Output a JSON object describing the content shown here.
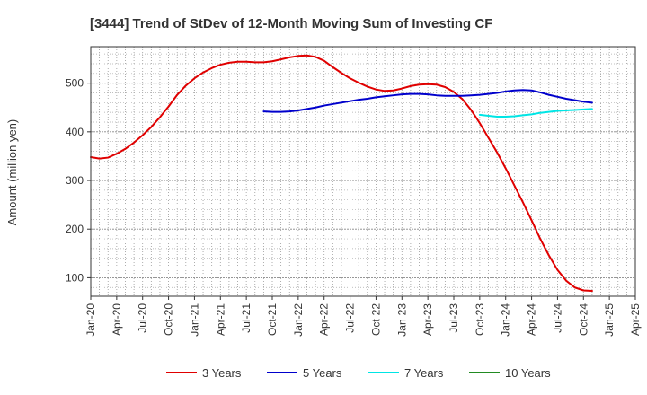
{
  "chart_data": {
    "type": "line",
    "title": "[3444]  Trend of StDev of 12-Month Moving Sum of Investing CF",
    "ylabel": "Amount (million yen)",
    "xlabel": "",
    "ylim": [
      62,
      575
    ],
    "xlim": [
      "2020-01",
      "2025-04"
    ],
    "y_ticks": [
      100,
      200,
      300,
      400,
      500
    ],
    "x_tick_labels": [
      "Jan-20",
      "Apr-20",
      "Jul-20",
      "Oct-20",
      "Jan-21",
      "Apr-21",
      "Jul-21",
      "Oct-21",
      "Jan-22",
      "Apr-22",
      "Jul-22",
      "Oct-22",
      "Jan-23",
      "Apr-23",
      "Jul-23",
      "Oct-23",
      "Jan-24",
      "Apr-24",
      "Jul-24",
      "Oct-24",
      "Jan-25",
      "Apr-25"
    ],
    "grid": true,
    "legend_position": "bottom",
    "series": [
      {
        "name": "3 Years",
        "color": "#e00000",
        "points": [
          [
            "2020-01",
            348
          ],
          [
            "2020-02",
            345
          ],
          [
            "2020-03",
            347
          ],
          [
            "2020-04",
            355
          ],
          [
            "2020-05",
            365
          ],
          [
            "2020-06",
            378
          ],
          [
            "2020-07",
            393
          ],
          [
            "2020-08",
            410
          ],
          [
            "2020-09",
            430
          ],
          [
            "2020-10",
            452
          ],
          [
            "2020-11",
            476
          ],
          [
            "2020-12",
            495
          ],
          [
            "2021-01",
            510
          ],
          [
            "2021-02",
            522
          ],
          [
            "2021-03",
            531
          ],
          [
            "2021-04",
            538
          ],
          [
            "2021-05",
            542
          ],
          [
            "2021-06",
            544
          ],
          [
            "2021-07",
            544
          ],
          [
            "2021-08",
            543
          ],
          [
            "2021-09",
            543
          ],
          [
            "2021-10",
            545
          ],
          [
            "2021-11",
            549
          ],
          [
            "2021-12",
            553
          ],
          [
            "2022-01",
            556
          ],
          [
            "2022-02",
            557
          ],
          [
            "2022-03",
            554
          ],
          [
            "2022-04",
            546
          ],
          [
            "2022-05",
            533
          ],
          [
            "2022-06",
            521
          ],
          [
            "2022-07",
            510
          ],
          [
            "2022-08",
            501
          ],
          [
            "2022-09",
            493
          ],
          [
            "2022-10",
            487
          ],
          [
            "2022-11",
            484
          ],
          [
            "2022-12",
            485
          ],
          [
            "2023-01",
            489
          ],
          [
            "2023-02",
            494
          ],
          [
            "2023-03",
            497
          ],
          [
            "2023-04",
            498
          ],
          [
            "2023-05",
            497
          ],
          [
            "2023-06",
            492
          ],
          [
            "2023-07",
            482
          ],
          [
            "2023-08",
            467
          ],
          [
            "2023-09",
            445
          ],
          [
            "2023-10",
            418
          ],
          [
            "2023-11",
            388
          ],
          [
            "2023-12",
            358
          ],
          [
            "2024-01",
            325
          ],
          [
            "2024-02",
            290
          ],
          [
            "2024-03",
            255
          ],
          [
            "2024-04",
            218
          ],
          [
            "2024-05",
            180
          ],
          [
            "2024-06",
            146
          ],
          [
            "2024-07",
            116
          ],
          [
            "2024-08",
            94
          ],
          [
            "2024-09",
            80
          ],
          [
            "2024-10",
            74
          ],
          [
            "2024-11",
            73
          ]
        ]
      },
      {
        "name": "5 Years",
        "color": "#0000cc",
        "points": [
          [
            "2021-09",
            442
          ],
          [
            "2021-10",
            441
          ],
          [
            "2021-11",
            441
          ],
          [
            "2021-12",
            442
          ],
          [
            "2022-01",
            444
          ],
          [
            "2022-02",
            447
          ],
          [
            "2022-03",
            450
          ],
          [
            "2022-04",
            454
          ],
          [
            "2022-05",
            457
          ],
          [
            "2022-06",
            460
          ],
          [
            "2022-07",
            463
          ],
          [
            "2022-08",
            466
          ],
          [
            "2022-09",
            468
          ],
          [
            "2022-10",
            471
          ],
          [
            "2022-11",
            473
          ],
          [
            "2022-12",
            475
          ],
          [
            "2023-01",
            477
          ],
          [
            "2023-02",
            478
          ],
          [
            "2023-03",
            478
          ],
          [
            "2023-04",
            477
          ],
          [
            "2023-05",
            475
          ],
          [
            "2023-06",
            474
          ],
          [
            "2023-07",
            474
          ],
          [
            "2023-08",
            474
          ],
          [
            "2023-09",
            475
          ],
          [
            "2023-10",
            476
          ],
          [
            "2023-11",
            478
          ],
          [
            "2023-12",
            480
          ],
          [
            "2024-01",
            483
          ],
          [
            "2024-02",
            485
          ],
          [
            "2024-03",
            486
          ],
          [
            "2024-04",
            485
          ],
          [
            "2024-05",
            481
          ],
          [
            "2024-06",
            476
          ],
          [
            "2024-07",
            472
          ],
          [
            "2024-08",
            468
          ],
          [
            "2024-09",
            465
          ],
          [
            "2024-10",
            462
          ],
          [
            "2024-11",
            460
          ]
        ]
      },
      {
        "name": "7 Years",
        "color": "#00e5e5",
        "points": [
          [
            "2023-10",
            435
          ],
          [
            "2023-11",
            433
          ],
          [
            "2023-12",
            431
          ],
          [
            "2024-01",
            431
          ],
          [
            "2024-02",
            432
          ],
          [
            "2024-03",
            434
          ],
          [
            "2024-04",
            436
          ],
          [
            "2024-05",
            439
          ],
          [
            "2024-06",
            441
          ],
          [
            "2024-07",
            443
          ],
          [
            "2024-08",
            444
          ],
          [
            "2024-09",
            445
          ],
          [
            "2024-10",
            446
          ],
          [
            "2024-11",
            447
          ]
        ]
      },
      {
        "name": "10 Years",
        "color": "#228b22",
        "points": []
      }
    ]
  }
}
